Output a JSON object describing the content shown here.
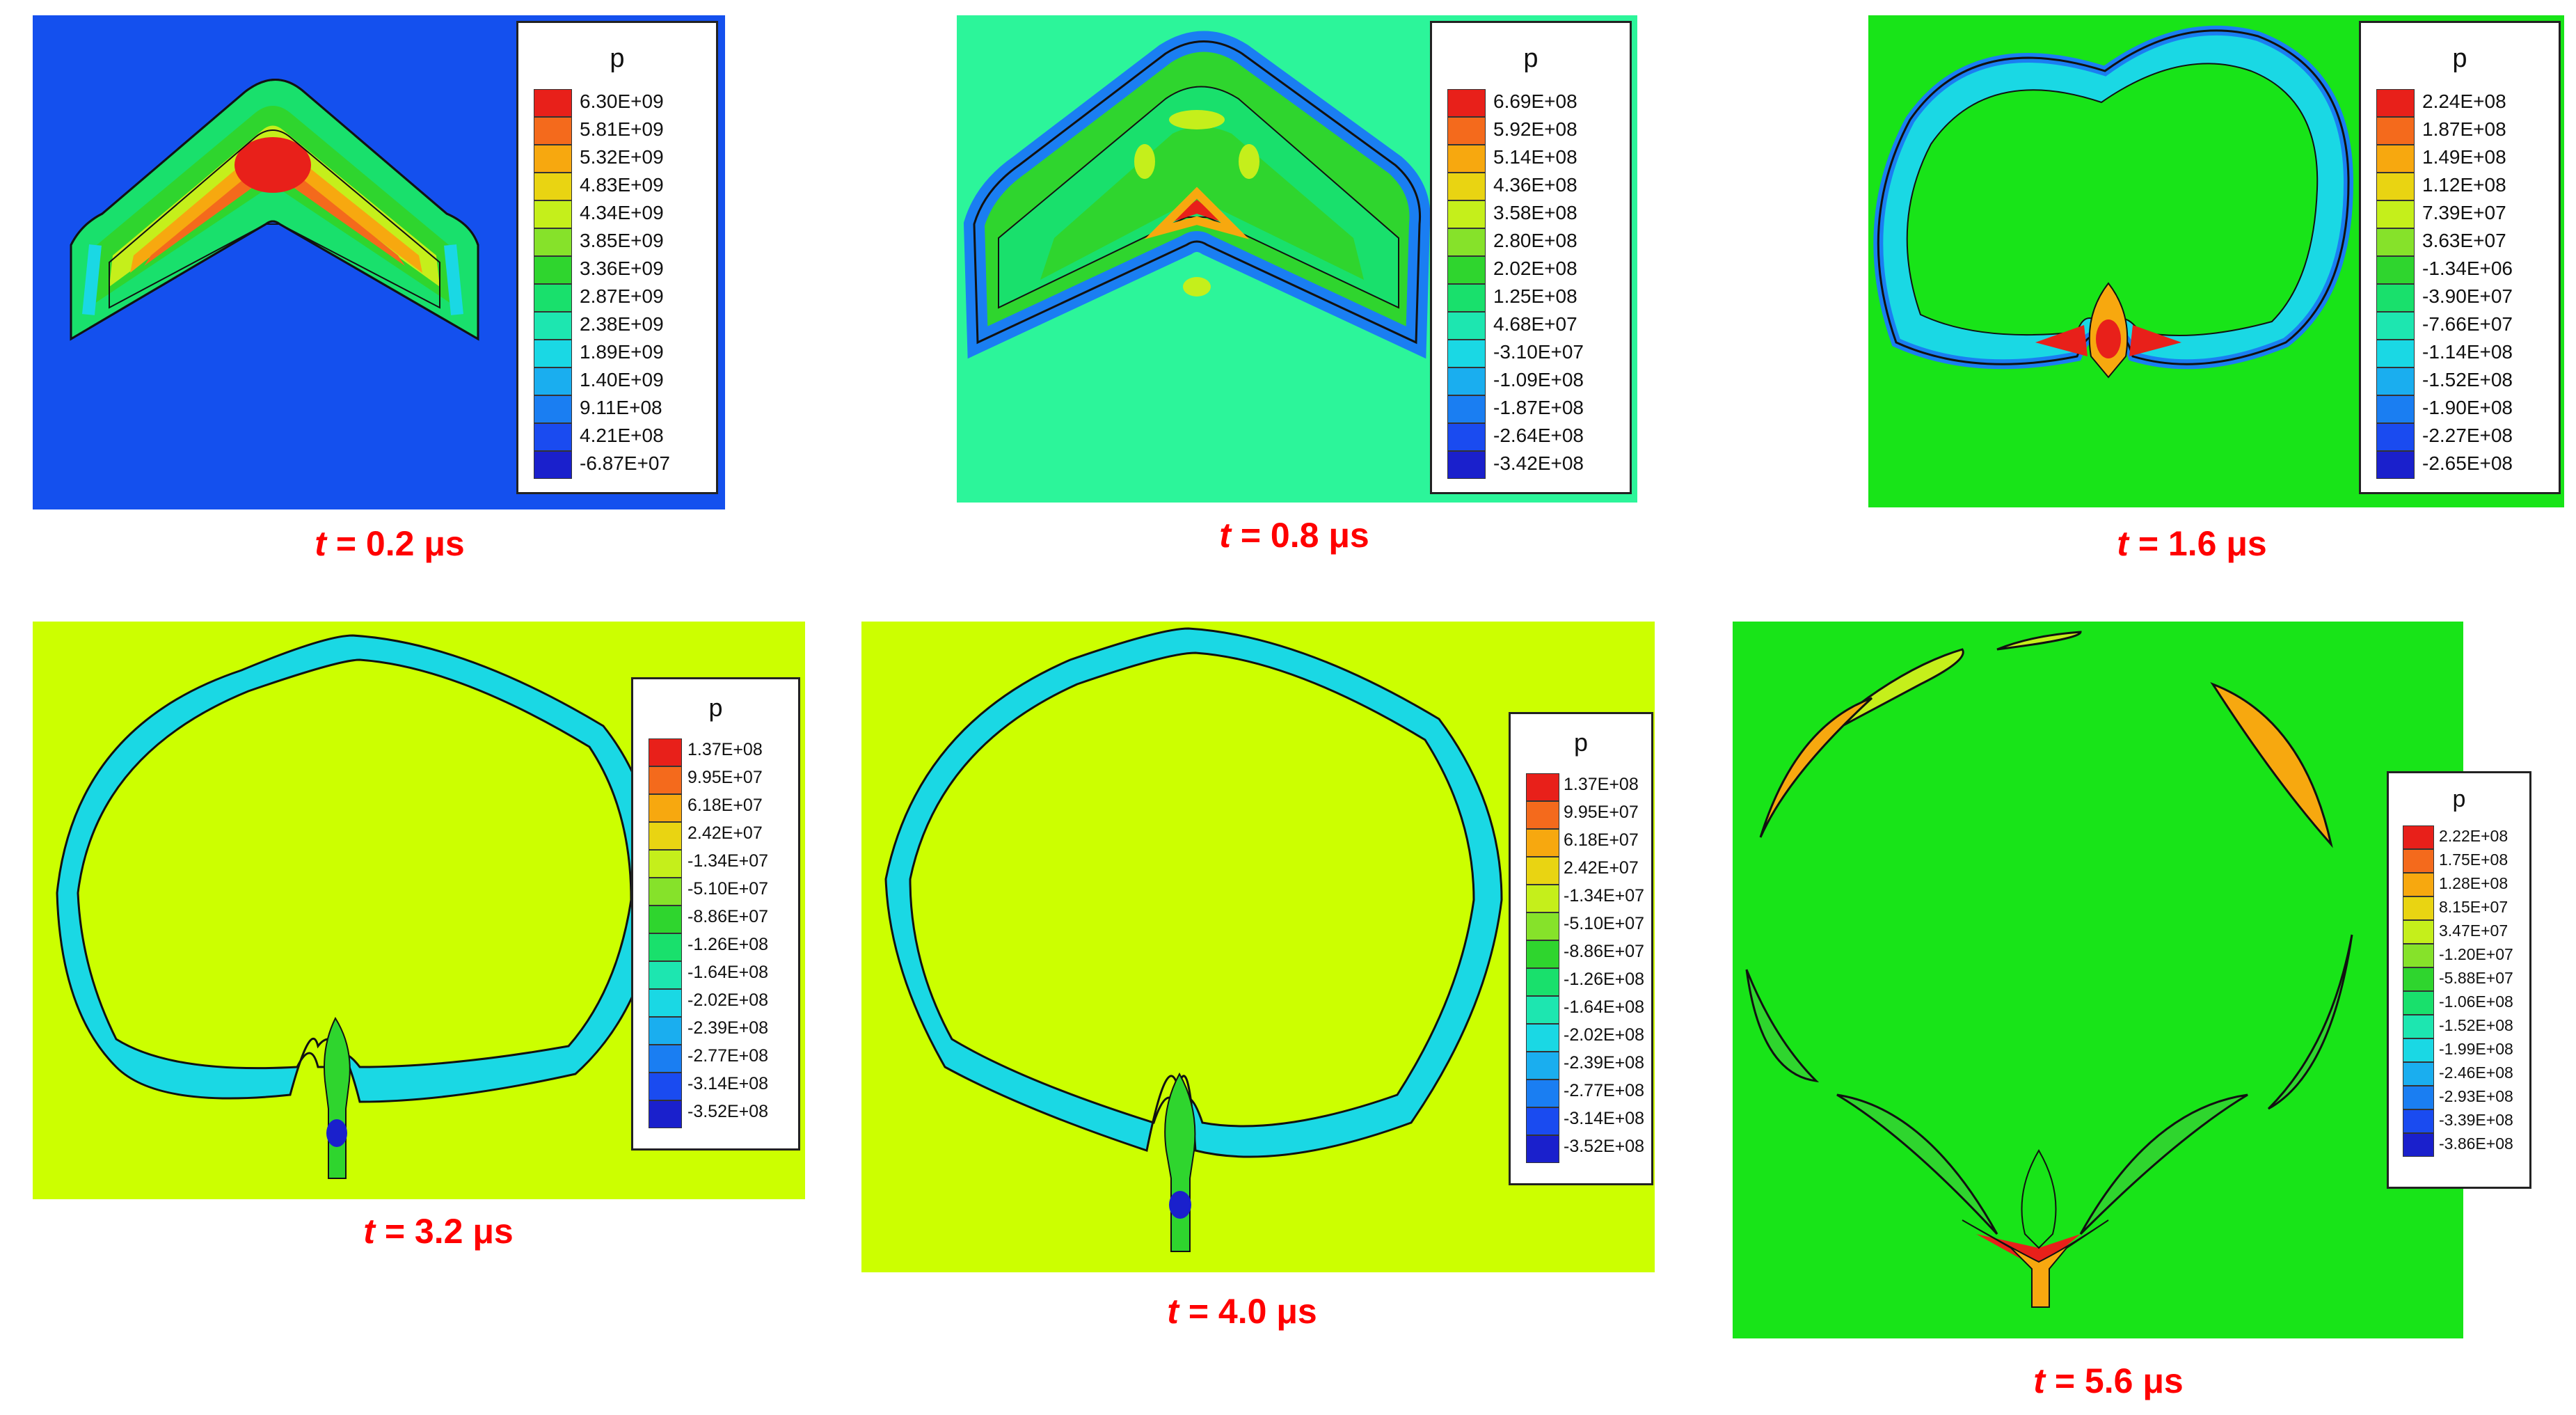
{
  "colors": {
    "outline": "#111111",
    "caption": "#ff0000",
    "backgrounds": [
      "#1450ee",
      "#2cf59a",
      "#18e418",
      "#ccff00",
      "#ccff00",
      "#18e418"
    ],
    "scale": [
      "#e8201a",
      "#f46a1c",
      "#f7a80f",
      "#e9d412",
      "#c5ef1b",
      "#86e22a",
      "#2fd52e",
      "#19e06c",
      "#1de6b0",
      "#1ad8e4",
      "#1aaeef",
      "#1a7ef2",
      "#1a4bf0",
      "#1a20cc"
    ]
  },
  "panels": [
    {
      "caption": {
        "t": "t",
        "eq": " = 0.2 ",
        "unit": "μs"
      },
      "legend": {
        "title": "p",
        "labels": [
          "6.30E+09",
          "5.81E+09",
          "5.32E+09",
          "4.83E+09",
          "4.34E+09",
          "3.85E+09",
          "3.36E+09",
          "2.87E+09",
          "2.38E+09",
          "1.89E+09",
          "1.40E+09",
          "9.11E+08",
          "4.21E+08",
          "-6.87E+07"
        ]
      }
    },
    {
      "caption": {
        "t": "t",
        "eq": " = 0.8 ",
        "unit": "μs"
      },
      "legend": {
        "title": "p",
        "labels": [
          "6.69E+08",
          "5.92E+08",
          "5.14E+08",
          "4.36E+08",
          "3.58E+08",
          "2.80E+08",
          "2.02E+08",
          "1.25E+08",
          "4.68E+07",
          "-3.10E+07",
          "-1.09E+08",
          "-1.87E+08",
          "-2.64E+08",
          "-3.42E+08"
        ]
      }
    },
    {
      "caption": {
        "t": "t",
        "eq": " = 1.6 ",
        "unit": "μs"
      },
      "legend": {
        "title": "p",
        "labels": [
          "2.24E+08",
          "1.87E+08",
          "1.49E+08",
          "1.12E+08",
          "7.39E+07",
          "3.63E+07",
          "-1.34E+06",
          "-3.90E+07",
          "-7.66E+07",
          "-1.14E+08",
          "-1.52E+08",
          "-1.90E+08",
          "-2.27E+08",
          "-2.65E+08"
        ]
      }
    },
    {
      "caption": {
        "t": "t",
        "eq": " = 3.2 ",
        "unit": "μs"
      },
      "legend": {
        "title": "p",
        "labels": [
          "1.37E+08",
          "9.95E+07",
          "6.18E+07",
          "2.42E+07",
          "-1.34E+07",
          "-5.10E+07",
          "-8.86E+07",
          "-1.26E+08",
          "-1.64E+08",
          "-2.02E+08",
          "-2.39E+08",
          "-2.77E+08",
          "-3.14E+08",
          "-3.52E+08"
        ]
      }
    },
    {
      "caption": {
        "t": "t",
        "eq": " = 4.0 ",
        "unit": "μs"
      },
      "legend": {
        "title": "p",
        "labels": [
          "1.37E+08",
          "9.95E+07",
          "6.18E+07",
          "2.42E+07",
          "-1.34E+07",
          "-5.10E+07",
          "-8.86E+07",
          "-1.26E+08",
          "-1.64E+08",
          "-2.02E+08",
          "-2.39E+08",
          "-2.77E+08",
          "-3.14E+08",
          "-3.52E+08"
        ]
      }
    },
    {
      "caption": {
        "t": "t",
        "eq": " = 5.6 ",
        "unit": "μs"
      },
      "legend": {
        "title": "p",
        "labels": [
          "2.22E+08",
          "1.75E+08",
          "1.28E+08",
          "8.15E+07",
          "3.47E+07",
          "-1.20E+07",
          "-5.88E+07",
          "-1.06E+08",
          "-1.52E+08",
          "-1.99E+08",
          "-2.46E+08",
          "-2.93E+08",
          "-3.39E+08",
          "-3.86E+08"
        ]
      }
    }
  ]
}
